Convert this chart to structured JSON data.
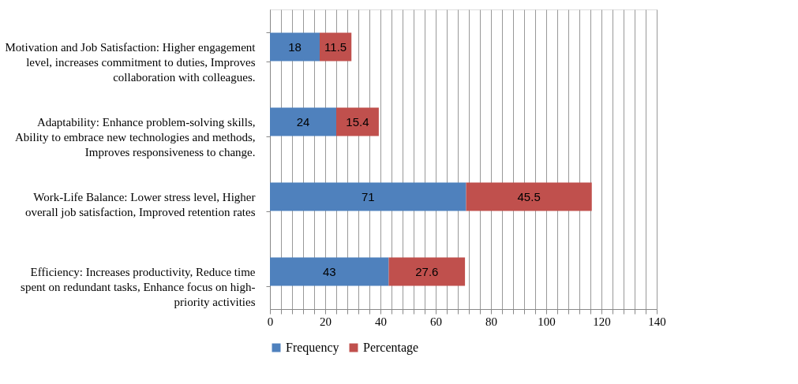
{
  "chart_data": {
    "type": "bar",
    "orientation": "horizontal",
    "stacked": true,
    "data_labels": true,
    "categories": [
      "Motivation and Job Satisfaction: Higher engagement level, increases commitment to duties, Improves collaboration with colleagues.",
      "Adaptability: Enhance problem-solving skills, Ability to embrace new technologies and methods, Improves responsiveness to change.",
      "Work-Life Balance: Lower stress level, Higher overall job satisfaction, Improved retention rates",
      "Efficiency: Increases productivity, Reduce time spent on redundant tasks, Enhance focus on high-priority activities"
    ],
    "series": [
      {
        "name": "Frequency",
        "color": "#4f81bd",
        "values": [
          18,
          24,
          71,
          43
        ]
      },
      {
        "name": "Percentage",
        "color": "#c0504d",
        "values": [
          11.5,
          15.4,
          45.5,
          27.6
        ]
      }
    ],
    "xlim": [
      0,
      140
    ],
    "xticks": [
      0,
      {
        "value": 4,
        "label": null
      },
      {
        "value": 8,
        "label": null
      },
      {
        "value": 12,
        "label": null
      },
      {
        "value": 16,
        "label": null
      },
      20,
      {
        "value": 24,
        "label": null
      },
      {
        "value": 28,
        "label": null
      },
      {
        "value": 32,
        "label": null
      },
      {
        "value": 36,
        "label": null
      },
      40,
      {
        "value": 44,
        "label": null
      },
      {
        "value": 48,
        "label": null
      },
      {
        "value": 52,
        "label": null
      },
      {
        "value": 56,
        "label": null
      },
      60,
      {
        "value": 64,
        "label": null
      },
      {
        "value": 68,
        "label": null
      },
      {
        "value": 72,
        "label": null
      },
      {
        "value": 76,
        "label": null
      },
      80,
      {
        "value": 84,
        "label": null
      },
      {
        "value": 88,
        "label": null
      },
      {
        "value": 92,
        "label": null
      },
      {
        "value": 96,
        "label": null
      },
      100,
      {
        "value": 104,
        "label": null
      },
      {
        "value": 108,
        "label": null
      },
      {
        "value": 112,
        "label": null
      },
      {
        "value": 116,
        "label": null
      },
      120,
      {
        "value": 124,
        "label": null
      },
      {
        "value": 128,
        "label": null
      },
      {
        "value": 132,
        "label": null
      },
      {
        "value": 136,
        "label": null
      },
      140
    ],
    "grid": "x",
    "legend": "bottom"
  }
}
